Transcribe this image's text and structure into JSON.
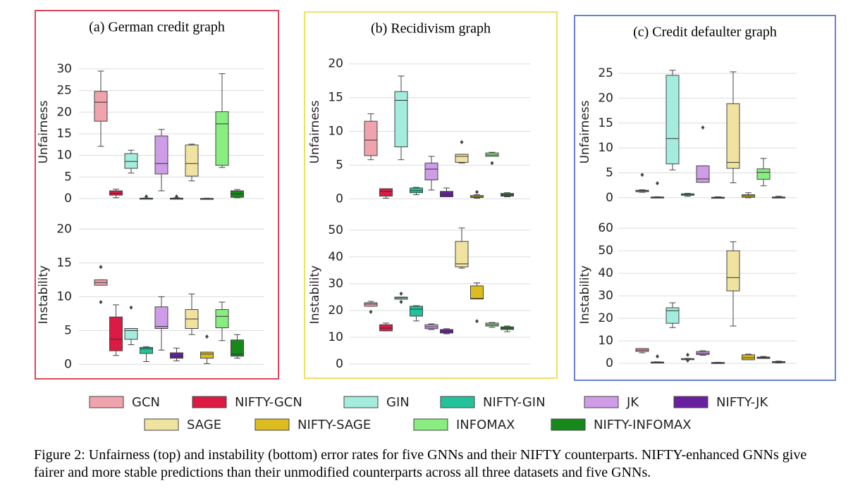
{
  "chart_data": [
    {
      "type": "box",
      "title": "(a) German credit graph",
      "frame_color": "#e0455a",
      "ylabel": "Unfairness",
      "ylim": [
        -1.3,
        32.1
      ],
      "yticks": [
        0,
        5,
        10,
        15,
        20,
        25,
        30
      ],
      "grid": true,
      "boxes": [
        {
          "stats": [
            12.1,
            17.9,
            22.3,
            24.8,
            29.5
          ],
          "outliers": []
        },
        {
          "stats": [
            0.2,
            0.8,
            1.2,
            1.8,
            2.2
          ],
          "outliers": []
        },
        {
          "stats": [
            5.9,
            7.0,
            8.6,
            10.4,
            11.2
          ],
          "outliers": []
        },
        {
          "stats": [
            0,
            0,
            0.05,
            0.1,
            0.15
          ],
          "outliers": [
            0.5
          ]
        },
        {
          "stats": [
            1.8,
            5.7,
            8.1,
            14.5,
            16
          ],
          "outliers": []
        },
        {
          "stats": [
            0,
            0,
            0.05,
            0.1,
            0.2
          ],
          "outliers": [
            0.5
          ]
        },
        {
          "stats": [
            4.1,
            5.2,
            8.1,
            12.4,
            12.6
          ],
          "outliers": []
        },
        {
          "stats": [
            0,
            0,
            0,
            0.05,
            0.1
          ],
          "outliers": []
        },
        {
          "stats": [
            7.2,
            7.7,
            17.3,
            20.1,
            28.9
          ],
          "outliers": []
        },
        {
          "stats": [
            0.2,
            0.3,
            1.1,
            1.8,
            2.1
          ],
          "outliers": []
        }
      ]
    },
    {
      "type": "box",
      "ylabel": "Instability",
      "ylim": [
        -0.8,
        21.4
      ],
      "yticks": [
        0,
        5,
        10,
        15,
        20
      ],
      "grid": true,
      "boxes": [
        {
          "stats": [
            11.7,
            11.7,
            12.1,
            12.5,
            12.5
          ],
          "outliers": [
            14.4,
            9.2
          ]
        },
        {
          "stats": [
            1.3,
            2.0,
            3.7,
            7.0,
            8.8
          ],
          "outliers": []
        },
        {
          "stats": [
            2.9,
            3.7,
            5.0,
            5.3,
            5.3
          ],
          "outliers": [
            8.4
          ]
        },
        {
          "stats": [
            0.4,
            1.6,
            2.3,
            2.5,
            2.6
          ],
          "outliers": []
        },
        {
          "stats": [
            2.1,
            5.3,
            5.6,
            8.5,
            10
          ],
          "outliers": []
        },
        {
          "stats": [
            0.5,
            0.9,
            1.2,
            1.7,
            2.4
          ],
          "outliers": []
        },
        {
          "stats": [
            4.4,
            5.3,
            6.7,
            8.1,
            10.4
          ],
          "outliers": []
        },
        {
          "stats": [
            0.1,
            0.9,
            1.5,
            1.8,
            1.8
          ],
          "outliers": [
            4.1
          ]
        },
        {
          "stats": [
            3.5,
            5.4,
            7.1,
            8.1,
            9.2
          ],
          "outliers": []
        },
        {
          "stats": [
            0.9,
            1.2,
            1.5,
            3.6,
            4.4
          ],
          "outliers": []
        }
      ]
    },
    {
      "type": "box",
      "title": "(b) Recidivism graph",
      "frame_color": "#f0e060",
      "ylabel": "Unfairness",
      "ylim": [
        -0.8,
        20.6
      ],
      "yticks": [
        0,
        5,
        10,
        15,
        20
      ],
      "grid": true,
      "boxes": [
        {
          "stats": [
            5.8,
            6.4,
            8.7,
            11.5,
            12.6
          ],
          "outliers": []
        },
        {
          "stats": [
            0.1,
            0.4,
            1.1,
            1.5,
            1.5
          ],
          "outliers": []
        },
        {
          "stats": [
            5.8,
            7.7,
            14.6,
            15.9,
            18.2
          ],
          "outliers": []
        },
        {
          "stats": [
            0.6,
            0.9,
            1.2,
            1.6,
            1.7
          ],
          "outliers": []
        },
        {
          "stats": [
            1.3,
            2.8,
            4.4,
            5.3,
            6.3
          ],
          "outliers": []
        },
        {
          "stats": [
            0.3,
            0.3,
            0.6,
            1.1,
            1.6
          ],
          "outliers": []
        },
        {
          "stats": [
            5.3,
            5.4,
            6.3,
            6.6,
            6.6
          ],
          "outliers": [
            8.4
          ]
        },
        {
          "stats": [
            0.1,
            0.2,
            0.3,
            0.5,
            0.6
          ],
          "outliers": [
            1.0
          ]
        },
        {
          "stats": [
            6.3,
            6.3,
            6.5,
            6.8,
            6.9
          ],
          "outliers": [
            5.3
          ]
        },
        {
          "stats": [
            0.3,
            0.4,
            0.6,
            0.8,
            0.9
          ],
          "outliers": []
        }
      ]
    },
    {
      "type": "box",
      "ylabel": "Instability",
      "ylim": [
        -2.1,
        53.9
      ],
      "yticks": [
        0,
        10,
        20,
        30,
        40,
        50
      ],
      "grid": true,
      "boxes": [
        {
          "stats": [
            21.6,
            21.6,
            22.4,
            22.9,
            23.4
          ],
          "outliers": [
            19.5
          ]
        },
        {
          "stats": [
            12.4,
            12.4,
            13.4,
            14.7,
            15.3
          ],
          "outliers": []
        },
        {
          "stats": [
            24.2,
            24.2,
            24.7,
            25,
            25
          ],
          "outliers": [
            26.3,
            23.2
          ]
        },
        {
          "stats": [
            16.1,
            17.9,
            20.5,
            21.6,
            21.8
          ],
          "outliers": []
        },
        {
          "stats": [
            12.9,
            13.2,
            13.9,
            14.7,
            15
          ],
          "outliers": []
        },
        {
          "stats": [
            11.3,
            11.6,
            12.1,
            12.9,
            13.2
          ],
          "outliers": []
        },
        {
          "stats": [
            35.8,
            36.3,
            37.4,
            45.8,
            50.8
          ],
          "outliers": []
        },
        {
          "stats": [
            24.3,
            24.3,
            24.5,
            29.2,
            30.3
          ],
          "outliers": [
            16
          ]
        },
        {
          "stats": [
            13.7,
            14.2,
            14.7,
            15.3,
            15.5
          ],
          "outliers": []
        },
        {
          "stats": [
            12.1,
            12.9,
            13.4,
            13.9,
            14.2
          ],
          "outliers": []
        }
      ]
    },
    {
      "type": "box",
      "title": "(c) Credit defaulter graph",
      "frame_color": "#6a80d8",
      "ylabel": "Unfairness",
      "ylim": [
        -1.3,
        27.7
      ],
      "yticks": [
        0,
        5,
        10,
        15,
        20,
        25
      ],
      "grid": true,
      "boxes": [
        {
          "stats": [
            1.1,
            1.2,
            1.4,
            1.5,
            1.6
          ],
          "outliers": [
            4.6
          ]
        },
        {
          "stats": [
            0,
            0.05,
            0.1,
            0.15,
            0.2
          ],
          "outliers": [
            2.9
          ]
        },
        {
          "stats": [
            5.6,
            6.8,
            11.9,
            24.6,
            25.6
          ],
          "outliers": []
        },
        {
          "stats": [
            0.3,
            0.5,
            0.6,
            0.8,
            0.9
          ],
          "outliers": []
        },
        {
          "stats": [
            3.1,
            3.1,
            3.8,
            6.4,
            6.4
          ],
          "outliers": [
            14.1
          ]
        },
        {
          "stats": [
            0,
            0,
            0.05,
            0.1,
            0.2
          ],
          "outliers": []
        },
        {
          "stats": [
            3.0,
            5.9,
            7.1,
            18.9,
            25.3
          ],
          "outliers": []
        },
        {
          "stats": [
            0,
            0.1,
            0.4,
            0.6,
            1.0
          ],
          "outliers": []
        },
        {
          "stats": [
            2.4,
            3.7,
            5.1,
            5.8,
            7.9
          ],
          "outliers": []
        },
        {
          "stats": [
            0,
            0.05,
            0.1,
            0.15,
            0.3
          ],
          "outliers": []
        }
      ]
    },
    {
      "type": "box",
      "ylabel": "Instability",
      "ylim": [
        -2.8,
        63.8
      ],
      "yticks": [
        0,
        10,
        20,
        30,
        40,
        50,
        60
      ],
      "grid": true,
      "boxes": [
        {
          "stats": [
            4.7,
            5.3,
            5.9,
            6.6,
            6.6
          ],
          "outliers": []
        },
        {
          "stats": [
            0.2,
            0.4,
            0.5,
            0.6,
            0.7
          ],
          "outliers": [
            3.1
          ]
        },
        {
          "stats": [
            15.9,
            17.8,
            23.4,
            24.7,
            26.9
          ],
          "outliers": []
        },
        {
          "stats": [
            1.8,
            1.9,
            2.0,
            2.1,
            2.2
          ],
          "outliers": [
            3.8,
            1.3
          ]
        },
        {
          "stats": [
            3.6,
            3.9,
            4.5,
            5.3,
            5.6
          ],
          "outliers": []
        },
        {
          "stats": [
            0.1,
            0.2,
            0.3,
            0.4,
            0.5
          ],
          "outliers": []
        },
        {
          "stats": [
            16.6,
            32.2,
            38.1,
            50,
            54
          ],
          "outliers": []
        },
        {
          "stats": [
            1.6,
            1.6,
            2.5,
            3.8,
            4.1
          ],
          "outliers": []
        },
        {
          "stats": [
            2.2,
            2.2,
            2.5,
            2.8,
            3.1
          ],
          "outliers": []
        },
        {
          "stats": [
            0.2,
            0.4,
            0.6,
            0.8,
            1.0
          ],
          "outliers": []
        }
      ]
    }
  ],
  "legend": [
    {
      "name": "GCN",
      "color": "#f0a3ad"
    },
    {
      "name": "NIFTY-GCN",
      "color": "#dc1a44"
    },
    {
      "name": "GIN",
      "color": "#a3ecde"
    },
    {
      "name": "NIFTY-GIN",
      "color": "#24c29a"
    },
    {
      "name": "JK",
      "color": "#cf9ce8"
    },
    {
      "name": "NIFTY-JK",
      "color": "#6a1ea0"
    },
    {
      "name": "SAGE",
      "color": "#f0e3a0"
    },
    {
      "name": "NIFTY-SAGE",
      "color": "#dcbc1e"
    },
    {
      "name": "INFOMAX",
      "color": "#88ee80"
    },
    {
      "name": "NIFTY-INFOMAX",
      "color": "#16891a"
    }
  ],
  "caption": "Figure 2: Unfairness (top) and instability (bottom) error rates for five GNNs and their NIFTY counterparts. NIFTY-enhanced GNNs give fairer and more stable predictions than their unmodified counterparts across all three datasets and five GNNs."
}
